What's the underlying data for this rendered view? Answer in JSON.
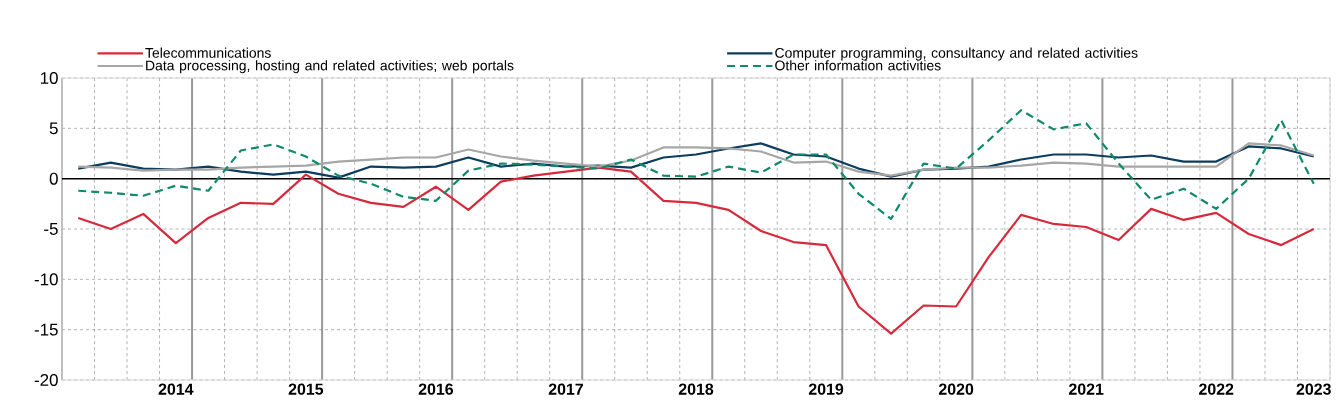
{
  "chart_data": {
    "type": "line",
    "categories": [
      null,
      null,
      null,
      "2014",
      null,
      null,
      null,
      "2015",
      null,
      null,
      null,
      "2016",
      null,
      null,
      null,
      "2017",
      null,
      null,
      null,
      "2018",
      null,
      null,
      null,
      "2019",
      null,
      null,
      null,
      "2020",
      null,
      null,
      null,
      "2021",
      null,
      null,
      null,
      "2022",
      null,
      null,
      "2023"
    ],
    "series": [
      {
        "name": "Telecommunications",
        "color": "#d62a3c",
        "values": [
          -3.9,
          -5.0,
          -3.5,
          -6.4,
          -3.9,
          -2.4,
          -2.5,
          0.4,
          -1.5,
          -2.4,
          -2.8,
          -0.8,
          -3.1,
          -0.3,
          0.3,
          0.7,
          1.1,
          0.7,
          -2.2,
          -2.4,
          -3.1,
          -5.2,
          -6.3,
          -6.6,
          -12.7,
          -15.4,
          -12.6,
          -12.7,
          -7.8,
          -3.6,
          -4.5,
          -4.8,
          -6.1,
          -3.0,
          -4.1,
          -3.4,
          -5.5,
          -6.6,
          -5.0
        ]
      },
      {
        "name": "Computer programming, consultancy and related activities",
        "color": "#0c3c5e",
        "values": [
          1.0,
          1.6,
          1.0,
          0.9,
          1.2,
          0.7,
          0.4,
          0.7,
          0.1,
          1.2,
          1.1,
          1.2,
          2.1,
          1.2,
          1.5,
          1.2,
          1.3,
          1.1,
          2.1,
          2.4,
          3.0,
          3.5,
          2.4,
          2.2,
          1.0,
          0.2,
          0.9,
          1.0,
          1.2,
          1.9,
          2.4,
          2.4,
          2.1,
          2.3,
          1.7,
          1.7,
          3.2,
          3.0,
          2.2
        ]
      },
      {
        "name": "Data processing, hosting and related activities; web portals",
        "color": "#a6a6a6",
        "values": [
          1.2,
          1.1,
          0.8,
          0.9,
          0.9,
          1.1,
          1.2,
          1.3,
          1.7,
          1.9,
          2.1,
          2.1,
          2.9,
          2.2,
          1.8,
          1.5,
          1.2,
          1.8,
          3.1,
          3.1,
          3.0,
          2.7,
          1.6,
          1.7,
          0.7,
          0.3,
          0.9,
          1.1,
          1.1,
          1.3,
          1.6,
          1.5,
          1.2,
          1.2,
          1.2,
          1.2,
          3.5,
          3.3,
          2.3
        ]
      },
      {
        "name": "Other information activities",
        "color": "#0f8a6a",
        "line_style": "dashed",
        "values": [
          -1.2,
          -1.4,
          -1.7,
          -0.7,
          -1.2,
          2.8,
          3.4,
          2.2,
          0.3,
          -0.5,
          -1.8,
          -2.2,
          0.8,
          1.5,
          1.4,
          1.2,
          1.0,
          1.9,
          0.3,
          0.2,
          1.2,
          0.6,
          2.4,
          2.4,
          -1.5,
          -4.0,
          1.5,
          1.0,
          3.8,
          6.8,
          4.9,
          5.5,
          1.5,
          -2.1,
          -1.0,
          -3.0,
          0.0,
          5.8,
          -0.5
        ]
      }
    ],
    "ylim": [
      -20,
      10
    ],
    "yticks": [
      -20,
      -15,
      -10,
      -5,
      0,
      5,
      10
    ],
    "ref_lines": [
      {
        "axis": "y",
        "value": 0,
        "color": "#000000"
      }
    ],
    "grid": true,
    "legend": "top",
    "marker": "none",
    "line_style": "solid"
  }
}
